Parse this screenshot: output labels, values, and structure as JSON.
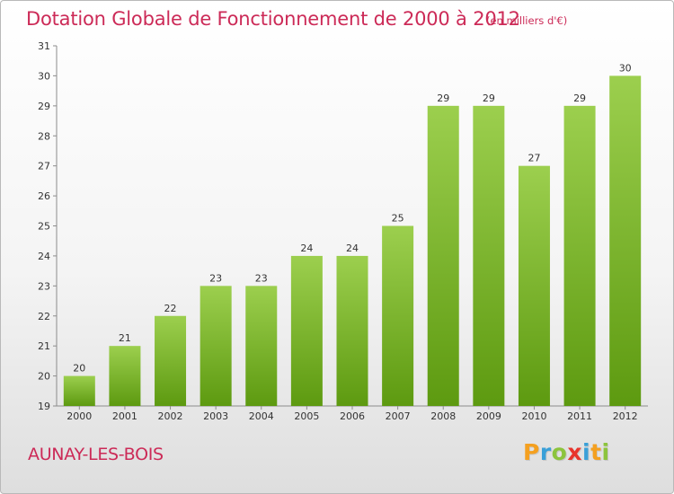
{
  "header": {
    "title": "Dotation Globale de Fonctionnement de 2000 à 2012",
    "units": "(en milliers d'€)"
  },
  "footer": {
    "commune": "AUNAY-LES-BOIS",
    "logo_letters": [
      "P",
      "r",
      "o",
      "x",
      "i",
      "t",
      "i"
    ],
    "logo_colors": [
      "#f4a020",
      "#3aa0d8",
      "#8cc43c",
      "#e8342c",
      "#3aa0d8",
      "#f4a020",
      "#8cc43c"
    ]
  },
  "chart_data": {
    "type": "bar",
    "categories": [
      "2000",
      "2001",
      "2002",
      "2003",
      "2004",
      "2005",
      "2006",
      "2007",
      "2008",
      "2009",
      "2010",
      "2011",
      "2012"
    ],
    "values": [
      20,
      21,
      22,
      23,
      23,
      24,
      24,
      25,
      29,
      29,
      27,
      29,
      30
    ],
    "data_labels": [
      "20",
      "21",
      "22",
      "23",
      "23",
      "24",
      "24",
      "25",
      "29",
      "29",
      "27",
      "29",
      "30"
    ],
    "yticks": [
      "19",
      "20",
      "21",
      "22",
      "23",
      "24",
      "25",
      "26",
      "27",
      "28",
      "29",
      "30",
      "31"
    ],
    "ylim": [
      19,
      31
    ],
    "xlabel": "",
    "ylabel": "",
    "grid": false,
    "bar_color_top": "#9ccf4e",
    "bar_color_bottom": "#5d9a10"
  }
}
